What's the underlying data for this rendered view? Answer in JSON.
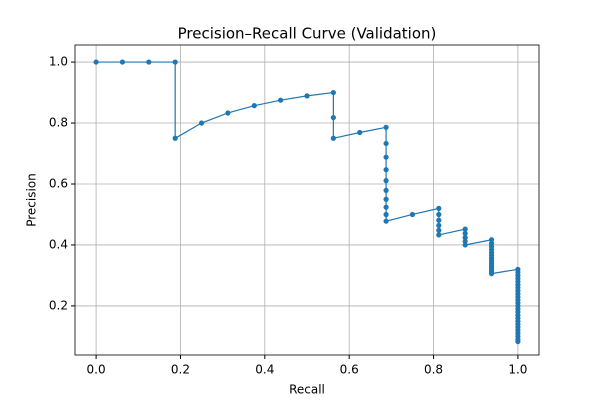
{
  "chart_data": {
    "type": "line",
    "title": "Precision–Recall Curve (Validation)",
    "x_label": "Recall",
    "y_label": "Precision",
    "series": [
      {
        "color": "#1f77b4",
        "x": [
          0,
          0.0625,
          0.125,
          0.1875,
          0.1875,
          0.25,
          0.3125,
          0.375,
          0.4375,
          0.5,
          0.5625,
          0.5625,
          0.5625,
          0.625,
          0.6875,
          0.6875,
          0.6875,
          0.6875,
          0.6875,
          0.6875,
          0.6875,
          0.6875,
          0.6875,
          0.6875,
          0.75,
          0.8125,
          0.8125,
          0.8125,
          0.8125,
          0.8125,
          0.8125,
          0.875,
          0.875,
          0.875,
          0.875,
          0.875,
          0.9375,
          0.9375,
          0.9375,
          0.9375,
          0.9375,
          0.9375,
          0.9375,
          0.9375,
          0.9375,
          0.9375,
          0.9375,
          0.9375,
          0.9375,
          0.9375,
          1,
          1,
          1,
          1,
          1,
          1,
          1,
          1,
          1,
          1,
          1,
          1,
          1,
          1,
          1,
          1,
          1,
          1,
          1,
          1,
          1,
          1,
          1,
          1,
          1
        ],
        "values": [
          1,
          1,
          1,
          1,
          0.75,
          0.8,
          0.833,
          0.857,
          0.875,
          0.889,
          0.9,
          0.818,
          0.75,
          0.769,
          0.786,
          0.733,
          0.688,
          0.647,
          0.611,
          0.579,
          0.55,
          0.524,
          0.5,
          0.478,
          0.5,
          0.52,
          0.5,
          0.481,
          0.464,
          0.448,
          0.433,
          0.452,
          0.438,
          0.424,
          0.412,
          0.4,
          0.417,
          0.405,
          0.395,
          0.385,
          0.375,
          0.366,
          0.357,
          0.349,
          0.341,
          0.333,
          0.326,
          0.319,
          0.313,
          0.306,
          0.32,
          0.31,
          0.3,
          0.29,
          0.28,
          0.27,
          0.26,
          0.25,
          0.24,
          0.23,
          0.22,
          0.21,
          0.2,
          0.19,
          0.18,
          0.17,
          0.16,
          0.15,
          0.14,
          0.13,
          0.12,
          0.11,
          0.1,
          0.09,
          0.083
        ]
      }
    ],
    "xlim": [
      -0.05,
      1.05
    ],
    "ylim": [
      0.039,
      1.056
    ],
    "xticks": [
      {
        "value": 0,
        "label": "0.0"
      },
      0.2,
      0.4,
      0.6,
      0.8,
      {
        "value": 1,
        "label": "1.0"
      }
    ],
    "yticks": [
      0.2,
      0.4,
      0.6,
      0.8,
      {
        "value": 1,
        "label": "1.0"
      }
    ],
    "grid": true
  }
}
